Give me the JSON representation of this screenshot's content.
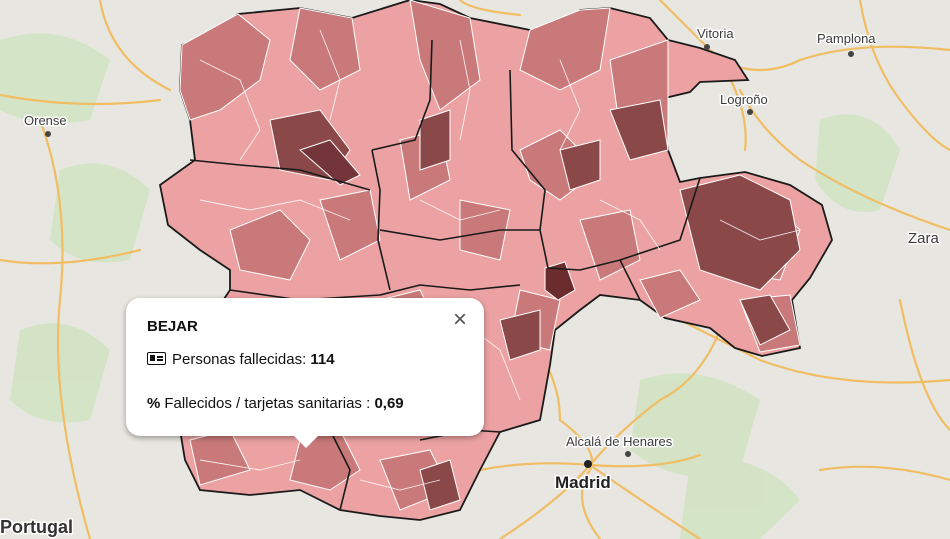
{
  "map": {
    "cities": [
      {
        "name": "Vitoria",
        "weight": "normal"
      },
      {
        "name": "Pamplona",
        "weight": "normal"
      },
      {
        "name": "Logroño",
        "weight": "normal"
      },
      {
        "name": "Orense",
        "weight": "normal"
      },
      {
        "name": "Zara",
        "weight": "normal"
      },
      {
        "name": "Alcalá de Henares",
        "weight": "normal"
      },
      {
        "name": "Madrid",
        "weight": "bold"
      },
      {
        "name": "Portugal",
        "weight": "country"
      }
    ],
    "colors": {
      "base": "#e8e6e1",
      "roads": "#f4c26b",
      "green": "#cfe1c0",
      "choropleth_light": "#eda4a4",
      "choropleth_mid": "#c97a7a",
      "choropleth_dark": "#8d4a4a",
      "choropleth_darkest": "#6a2e2e",
      "boundary": "#1a1a1a"
    }
  },
  "popup": {
    "title": "BEJAR",
    "row1_label": "Personas fallecidas: ",
    "row1_value": "114",
    "row2_label": "Fallecidos / tarjetas sanitarias : ",
    "row2_value": "0,69",
    "close": "×",
    "row1_icon": "id-card-icon",
    "row2_icon": "percent-icon"
  }
}
